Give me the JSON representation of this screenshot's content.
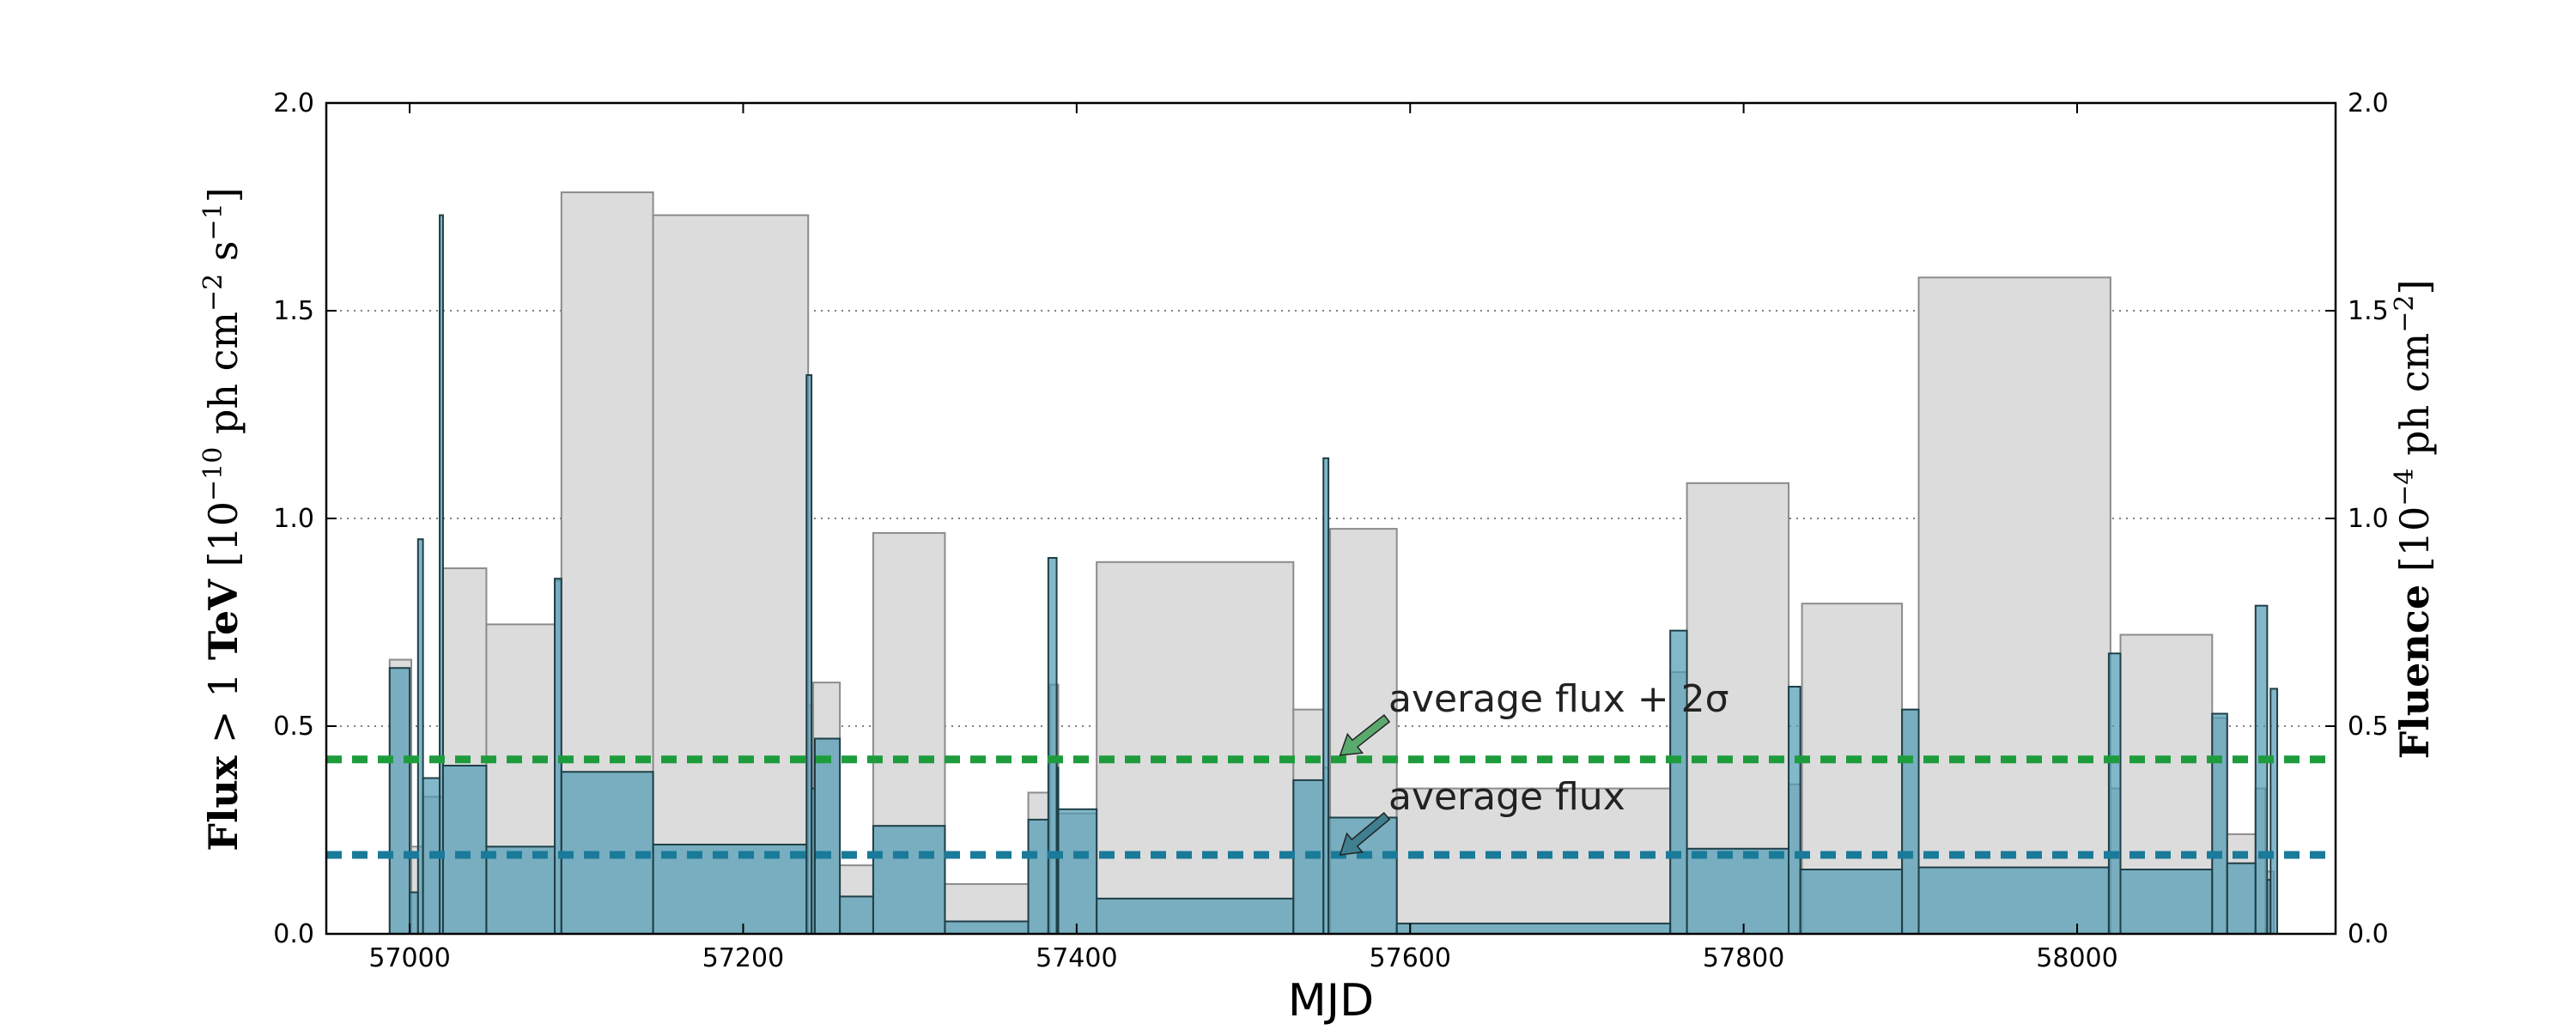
{
  "chart_data": {
    "type": "bar",
    "xlabel": "MJD",
    "ylabel_left": "Flux > 1 TeV [10^−10 ph cm^−2 s^−1]",
    "ylabel_left_parts": [
      "Flux",
      " > 1 ",
      "TeV",
      " [10",
      "−10",
      " ph cm",
      "−2",
      " s",
      "−1",
      "]"
    ],
    "ylabel_right": "Fluence [10^−4 ph cm^−2]",
    "ylabel_right_parts": [
      "Fluence",
      " [10",
      "−4",
      " ph cm",
      "−2",
      "]"
    ],
    "xlim": [
      56950,
      58155
    ],
    "ylim": [
      0,
      2.0
    ],
    "x_ticks": [
      57000,
      57200,
      57400,
      57600,
      57800,
      58000
    ],
    "x_tick_labels": [
      "57000",
      "57200",
      "57400",
      "57600",
      "57800",
      "58000"
    ],
    "y_ticks": [
      0.0,
      0.5,
      1.0,
      1.5,
      2.0
    ],
    "y_tick_labels": [
      "0.0",
      "0.5",
      "1.0",
      "1.5",
      "2.0"
    ],
    "grid": "horizontal dotted",
    "colors": {
      "fluence_fill": "#dcdcdc",
      "fluence_edge": "#8c8c8c",
      "flux_fill": "#4d9ab3",
      "flux_edge": "#1f3f47",
      "avg_flux_line": "#1a7a9a",
      "avg_2sigma_line": "#1e9c3d",
      "arrow_green": "#5aaa6e",
      "arrow_blue": "#3f7f8f"
    },
    "average_flux": 0.19,
    "average_flux_2sigma": 0.42,
    "annotations": [
      {
        "text": "average flux + 2σ",
        "text_x": 57587,
        "text_y": 0.535,
        "arrow_x": 57558,
        "arrow_y": 0.43,
        "color_key": "arrow_green"
      },
      {
        "text": "average flux",
        "text_x": 57587,
        "text_y": 0.3,
        "arrow_x": 57558,
        "arrow_y": 0.19,
        "color_key": "arrow_blue"
      }
    ],
    "fluence_series": [
      {
        "x0": 56988,
        "x1": 57001,
        "value": 0.66
      },
      {
        "x0": 57001,
        "x1": 57008,
        "value": 0.21
      },
      {
        "x0": 57008,
        "x1": 57020,
        "value": 0.33
      },
      {
        "x0": 57020,
        "x1": 57046,
        "value": 0.88
      },
      {
        "x0": 57046,
        "x1": 57087,
        "value": 0.745
      },
      {
        "x0": 57087,
        "x1": 57091,
        "value": 0.85
      },
      {
        "x0": 57091,
        "x1": 57146,
        "value": 1.785
      },
      {
        "x0": 57146,
        "x1": 57239,
        "value": 1.73
      },
      {
        "x0": 57239,
        "x1": 57242,
        "value": 0.55
      },
      {
        "x0": 57242,
        "x1": 57258,
        "value": 0.605
      },
      {
        "x0": 57258,
        "x1": 57278,
        "value": 0.165
      },
      {
        "x0": 57278,
        "x1": 57321,
        "value": 0.965
      },
      {
        "x0": 57321,
        "x1": 57371,
        "value": 0.12
      },
      {
        "x0": 57371,
        "x1": 57384,
        "value": 0.34
      },
      {
        "x0": 57384,
        "x1": 57389,
        "value": 0.6
      },
      {
        "x0": 57389,
        "x1": 57412,
        "value": 0.29
      },
      {
        "x0": 57412,
        "x1": 57530,
        "value": 0.895
      },
      {
        "x0": 57530,
        "x1": 57548,
        "value": 0.54
      },
      {
        "x0": 57548,
        "x1": 57552,
        "value": 0.4
      },
      {
        "x0": 57552,
        "x1": 57592,
        "value": 0.975
      },
      {
        "x0": 57592,
        "x1": 57756,
        "value": 0.35
      },
      {
        "x0": 57756,
        "x1": 57766,
        "value": 0.63
      },
      {
        "x0": 57766,
        "x1": 57827,
        "value": 1.085
      },
      {
        "x0": 57827,
        "x1": 57835,
        "value": 0.36
      },
      {
        "x0": 57835,
        "x1": 57895,
        "value": 0.795
      },
      {
        "x0": 57895,
        "x1": 57905,
        "value": 0.54
      },
      {
        "x0": 57905,
        "x1": 58020,
        "value": 1.58
      },
      {
        "x0": 58020,
        "x1": 58026,
        "value": 0.35
      },
      {
        "x0": 58026,
        "x1": 58081,
        "value": 0.72
      },
      {
        "x0": 58081,
        "x1": 58090,
        "value": 0.52
      },
      {
        "x0": 58090,
        "x1": 58107,
        "value": 0.24
      },
      {
        "x0": 58107,
        "x1": 58113,
        "value": 0.35
      },
      {
        "x0": 58113,
        "x1": 58118,
        "value": 0.15
      }
    ],
    "flux_series": [
      {
        "x0": 56988,
        "x1": 57000,
        "value": 0.64
      },
      {
        "x0": 57000,
        "x1": 57005,
        "value": 0.1
      },
      {
        "x0": 57005,
        "x1": 57008,
        "value": 0.95
      },
      {
        "x0": 57008,
        "x1": 57018,
        "value": 0.375
      },
      {
        "x0": 57018,
        "x1": 57020,
        "value": 1.73
      },
      {
        "x0": 57020,
        "x1": 57046,
        "value": 0.405
      },
      {
        "x0": 57046,
        "x1": 57087,
        "value": 0.21
      },
      {
        "x0": 57087,
        "x1": 57091,
        "value": 0.855
      },
      {
        "x0": 57091,
        "x1": 57146,
        "value": 0.39
      },
      {
        "x0": 57146,
        "x1": 57238,
        "value": 0.215
      },
      {
        "x0": 57238,
        "x1": 57241,
        "value": 1.345
      },
      {
        "x0": 57241,
        "x1": 57243,
        "value": 0.35
      },
      {
        "x0": 57243,
        "x1": 57258,
        "value": 0.47
      },
      {
        "x0": 57258,
        "x1": 57278,
        "value": 0.09
      },
      {
        "x0": 57278,
        "x1": 57321,
        "value": 0.26
      },
      {
        "x0": 57321,
        "x1": 57371,
        "value": 0.03
      },
      {
        "x0": 57371,
        "x1": 57383,
        "value": 0.275
      },
      {
        "x0": 57383,
        "x1": 57388,
        "value": 0.905
      },
      {
        "x0": 57388,
        "x1": 57389,
        "value": 0.4
      },
      {
        "x0": 57389,
        "x1": 57412,
        "value": 0.3
      },
      {
        "x0": 57412,
        "x1": 57530,
        "value": 0.085
      },
      {
        "x0": 57530,
        "x1": 57548,
        "value": 0.37
      },
      {
        "x0": 57548,
        "x1": 57551,
        "value": 1.145
      },
      {
        "x0": 57551,
        "x1": 57592,
        "value": 0.28
      },
      {
        "x0": 57592,
        "x1": 57756,
        "value": 0.025
      },
      {
        "x0": 57756,
        "x1": 57766,
        "value": 0.73
      },
      {
        "x0": 57766,
        "x1": 57827,
        "value": 0.205
      },
      {
        "x0": 57827,
        "x1": 57834,
        "value": 0.595
      },
      {
        "x0": 57834,
        "x1": 57895,
        "value": 0.155
      },
      {
        "x0": 57895,
        "x1": 57905,
        "value": 0.54
      },
      {
        "x0": 57905,
        "x1": 58019,
        "value": 0.16
      },
      {
        "x0": 58019,
        "x1": 58026,
        "value": 0.675
      },
      {
        "x0": 58026,
        "x1": 58081,
        "value": 0.155
      },
      {
        "x0": 58081,
        "x1": 58090,
        "value": 0.53
      },
      {
        "x0": 58090,
        "x1": 58107,
        "value": 0.17
      },
      {
        "x0": 58107,
        "x1": 58114,
        "value": 0.79
      },
      {
        "x0": 58114,
        "x1": 58116,
        "value": 0.13
      },
      {
        "x0": 58116,
        "x1": 58120,
        "value": 0.59
      }
    ]
  }
}
